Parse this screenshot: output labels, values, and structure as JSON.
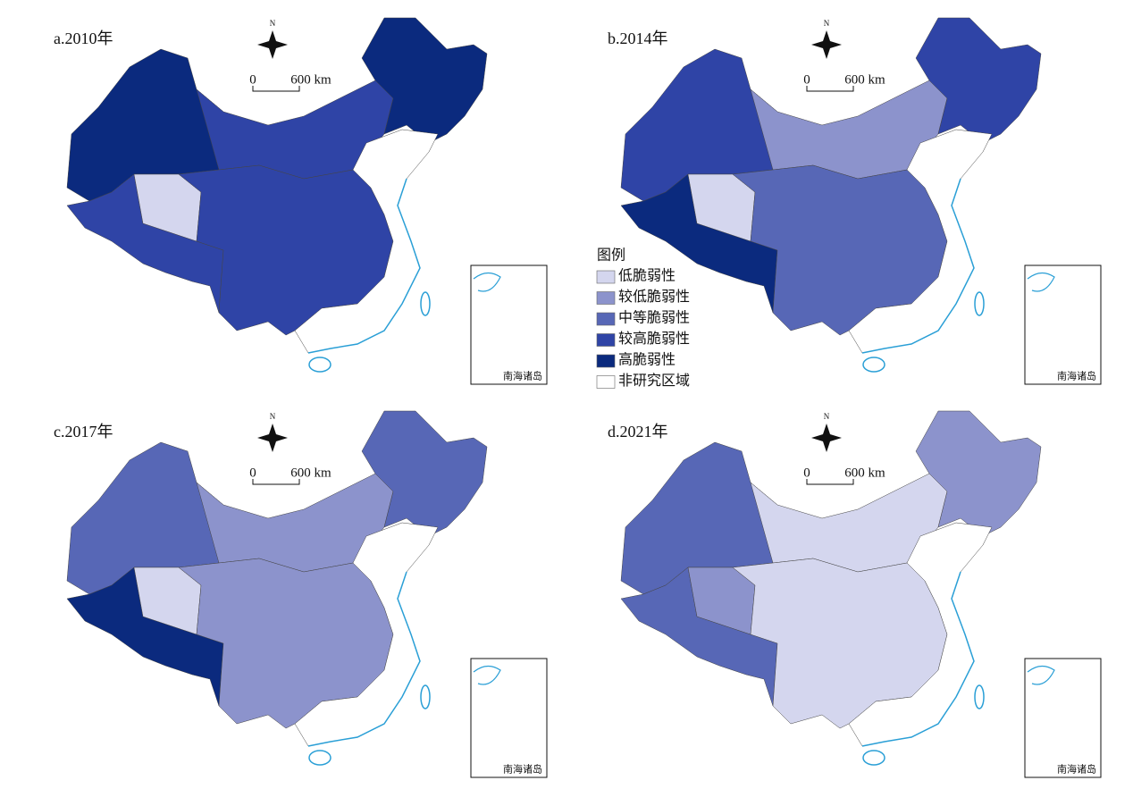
{
  "panels": [
    {
      "title": "a.2010年"
    },
    {
      "title": "b.2014年"
    },
    {
      "title": "c.2017年"
    },
    {
      "title": "d.2021年"
    }
  ],
  "north": "N",
  "scale": {
    "zero": "0",
    "label": "600 km"
  },
  "inset_label": "南海诸岛",
  "legend": {
    "title": "图例",
    "items": [
      {
        "label": "低脆弱性",
        "color": "#d4d6ee"
      },
      {
        "label": "较低脆弱性",
        "color": "#8c93cc"
      },
      {
        "label": "中等脆弱性",
        "color": "#5767b6"
      },
      {
        "label": "较高脆弱性",
        "color": "#2f44a6"
      },
      {
        "label": "高脆弱性",
        "color": "#0b2a7e"
      },
      {
        "label": "非研究区域",
        "color": "#ffffff"
      }
    ]
  }
}
